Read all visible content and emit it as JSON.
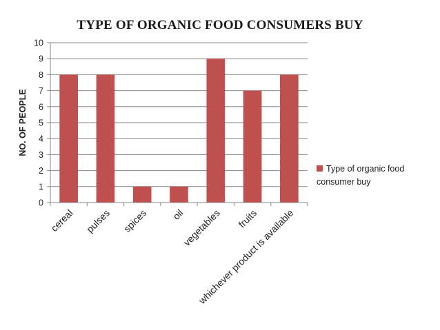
{
  "chart_data": {
    "type": "bar",
    "title": "TYPE OF ORGANIC FOOD CONSUMERS BUY",
    "xlabel": "",
    "ylabel": "NO. OF PEOPLE",
    "categories": [
      "cereal",
      "pulses",
      "spices",
      "oil",
      "vegetables",
      "fruits",
      "whichever product is available"
    ],
    "series": [
      {
        "name": "Type of organic food consumer buy",
        "values": [
          8,
          8,
          1,
          1,
          9,
          7,
          8
        ]
      }
    ],
    "ylim": [
      0,
      10
    ],
    "yticks": [
      0,
      1,
      2,
      3,
      4,
      5,
      6,
      7,
      8,
      9,
      10
    ],
    "grid": true,
    "legend_position": "right",
    "colors": {
      "bar": "#c0504d",
      "grid": "#868686",
      "axis": "#868686"
    }
  }
}
